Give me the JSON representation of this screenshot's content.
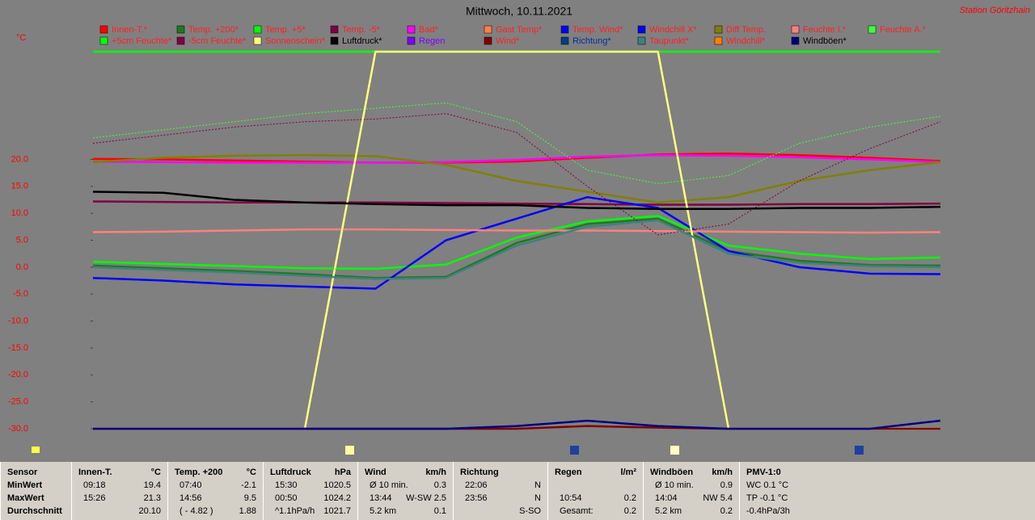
{
  "chart_data": {
    "type": "line",
    "title": "Mittwoch, 10.11.2021",
    "station": "Station Göritzhain",
    "y_unit": "°C",
    "x": [
      0,
      2,
      4,
      6,
      8,
      10,
      12,
      14,
      16,
      18,
      20,
      22,
      24
    ],
    "xlim": [
      0,
      24
    ],
    "ylim": [
      -30,
      40
    ],
    "yticks": [
      {
        "value": 20,
        "label": "20.0"
      },
      {
        "value": 15,
        "label": "15.0"
      },
      {
        "value": 10,
        "label": "10.0"
      },
      {
        "value": 5,
        "label": "5.0"
      },
      {
        "value": 0,
        "label": "0.0"
      },
      {
        "value": -5,
        "label": "-5.0"
      },
      {
        "value": -10,
        "label": "-10.0"
      },
      {
        "value": -15,
        "label": "-15.0"
      },
      {
        "value": -20,
        "label": "-20.0"
      },
      {
        "value": -25,
        "label": "-25.0"
      },
      {
        "value": -30,
        "label": "-30.0"
      }
    ],
    "series": [
      {
        "name": "Innen-T.*",
        "color": "#ff0000",
        "values": [
          20.1,
          20.0,
          19.8,
          19.6,
          19.4,
          19.4,
          19.6,
          20.3,
          20.9,
          21.1,
          20.8,
          20.3,
          19.7
        ]
      },
      {
        "name": "Temp. +200*",
        "color": "#1e7a1e",
        "values": [
          0.3,
          -0.2,
          -0.7,
          -1.3,
          -2.0,
          -1.8,
          4.5,
          8.0,
          9.0,
          3.0,
          1.2,
          0.4,
          0.3
        ]
      },
      {
        "name": "Temp. +5*",
        "color": "#00ff00",
        "values": [
          1.0,
          0.6,
          0.2,
          -0.2,
          -0.3,
          0.5,
          5.5,
          8.5,
          9.5,
          4.0,
          2.5,
          1.5,
          1.8
        ]
      },
      {
        "name": "Temp. -5*",
        "color": "#800040",
        "values": [
          12.2,
          12.1,
          12.0,
          12.0,
          12.0,
          11.9,
          11.8,
          11.7,
          11.6,
          11.6,
          11.7,
          11.7,
          11.8
        ]
      },
      {
        "name": "Bad*",
        "color": "#ff00ff",
        "values": [
          19.6,
          19.5,
          19.4,
          19.4,
          19.4,
          19.5,
          19.9,
          20.5,
          20.8,
          20.7,
          20.4,
          20.0,
          19.5
        ]
      },
      {
        "name": "Gast Temp*",
        "color": "#ff8040",
        "values": [
          null,
          null,
          null,
          null,
          null,
          null,
          null,
          null,
          null,
          null,
          null,
          null,
          null
        ]
      },
      {
        "name": "Temp. Wind*",
        "color": "#0000ff",
        "values": [
          null,
          null,
          null,
          null,
          null,
          null,
          null,
          null,
          null,
          null,
          null,
          null,
          null
        ]
      },
      {
        "name": "Windchill X*",
        "color": "#0000ff",
        "values": [
          -2.0,
          -2.5,
          -3.2,
          -3.6,
          -4.0,
          5.0,
          9.0,
          13.0,
          11.0,
          3.0,
          0.0,
          -1.2,
          -1.3
        ]
      },
      {
        "name": "Diff Temp.",
        "color": "#808000",
        "values": [
          19.5,
          20.3,
          20.7,
          20.8,
          20.6,
          19.0,
          16.0,
          14.0,
          12.0,
          13.0,
          16.0,
          18.0,
          19.5
        ]
      },
      {
        "name": "Feuchte I.*",
        "color": "#ff8080",
        "values": [
          6.5,
          6.6,
          6.8,
          7.0,
          7.0,
          6.9,
          6.8,
          6.8,
          6.7,
          6.6,
          6.5,
          6.4,
          6.5
        ]
      },
      {
        "name": "Feuchte A.*",
        "color": "#40ff40",
        "dashed": true,
        "values": [
          24.0,
          25.5,
          27.0,
          28.5,
          29.5,
          30.5,
          27.0,
          18.0,
          15.5,
          17.0,
          23.0,
          26.0,
          28.0
        ]
      },
      {
        "name": "+5cm Feuchte*",
        "color": "#00ff00",
        "values": [
          40,
          40,
          40,
          40,
          40,
          40,
          40,
          40,
          40,
          40,
          40,
          40,
          40
        ]
      },
      {
        "name": "-5cm Feuchte*",
        "color": "#800040",
        "dashed": true,
        "values": [
          23.0,
          24.5,
          26.0,
          27.0,
          27.5,
          28.5,
          25.0,
          15.0,
          6.0,
          8.0,
          16.0,
          22.0,
          27.0
        ]
      },
      {
        "name": "Sonnenschein*",
        "color": "#ffff80",
        "values": [
          -30,
          -30,
          -30,
          -30,
          40,
          40,
          40,
          40,
          40,
          -30,
          -30,
          -30,
          -30
        ]
      },
      {
        "name": "Luftdruck*",
        "color": "#000000",
        "label_color": "#000000",
        "values": [
          14.0,
          13.8,
          12.5,
          12.0,
          11.7,
          11.5,
          11.5,
          11.0,
          10.8,
          10.8,
          11.0,
          11.0,
          11.2
        ]
      },
      {
        "name": "Regen",
        "color": "#8000ff",
        "label_color": "#8000ff",
        "values": [
          null,
          null,
          null,
          null,
          null,
          null,
          null,
          null,
          null,
          null,
          null,
          null,
          null
        ]
      },
      {
        "name": "Wind*",
        "color": "#800000",
        "values": [
          -30,
          -30,
          -30,
          -30,
          -30,
          -30,
          -30,
          -29.5,
          -29.8,
          -30,
          -30,
          -30,
          -30
        ]
      },
      {
        "name": "Richtung*",
        "color": "#004080",
        "label_color": "#003399",
        "values": [
          null,
          null,
          null,
          null,
          null,
          null,
          null,
          null,
          null,
          null,
          null,
          null,
          null
        ]
      },
      {
        "name": "Taupunkt*",
        "color": "#408080",
        "values": [
          0.0,
          -0.5,
          -1.0,
          -1.6,
          -2.2,
          -2.0,
          4.0,
          7.5,
          8.7,
          2.5,
          0.8,
          0.2,
          0.0
        ]
      },
      {
        "name": "Windchill*",
        "color": "#ff8000",
        "values": [
          null,
          null,
          null,
          null,
          null,
          null,
          null,
          null,
          null,
          null,
          null,
          null,
          null
        ]
      },
      {
        "name": "Windböen*",
        "color": "#000080",
        "label_color": "#000000",
        "values": [
          -30,
          -30,
          -30,
          -30,
          -30,
          -30,
          -29.5,
          -28.5,
          -29.5,
          -30,
          -30,
          -30,
          -28.5
        ]
      }
    ]
  },
  "table": {
    "columns": [
      {
        "header": [
          "Sensor"
        ],
        "rows": [
          [
            "MinWert"
          ],
          [
            "MaxWert"
          ],
          [
            "Durchschnitt"
          ]
        ]
      },
      {
        "header": [
          "Innen-T.",
          "°C"
        ],
        "rows": [
          [
            "09:18",
            "19.4"
          ],
          [
            "15:26",
            "21.3"
          ],
          [
            null,
            "20.10"
          ]
        ]
      },
      {
        "header": [
          "Temp. +200",
          "°C"
        ],
        "rows": [
          [
            "07:40",
            "-2.1"
          ],
          [
            "14:56",
            "9.5"
          ],
          [
            "( - 4.82 )",
            "1.88"
          ]
        ]
      },
      {
        "header": [
          "Luftdruck",
          "hPa"
        ],
        "rows": [
          [
            "15:30",
            "1020.5"
          ],
          [
            "00:50",
            "1024.2"
          ],
          [
            "^1.1hPa/h",
            "1021.7"
          ]
        ]
      },
      {
        "header": [
          "Wind",
          "km/h"
        ],
        "rows": [
          [
            "Ø 10 min.",
            "0.3"
          ],
          [
            "13:44",
            "W-SW 2.5"
          ],
          [
            "5.2 km",
            "0.1"
          ]
        ]
      },
      {
        "header": [
          "Richtung"
        ],
        "rows": [
          [
            "22:06",
            "N"
          ],
          [
            "23:56",
            "N"
          ],
          [
            null,
            "S-SO"
          ]
        ]
      },
      {
        "header": [
          "Regen",
          "l/m²"
        ],
        "rows": [
          [
            null,
            null
          ],
          [
            "10:54",
            "0.2"
          ],
          [
            "Gesamt:",
            "0.2"
          ]
        ]
      },
      {
        "header": [
          "Windböen",
          "km/h"
        ],
        "rows": [
          [
            "Ø 10 min.",
            "0.9"
          ],
          [
            "14:04",
            "NW 5.4"
          ],
          [
            "5.2 km",
            "0.2"
          ]
        ]
      },
      {
        "header": [
          "PMV-1:0"
        ],
        "rows": [
          [
            "WC 0.1 °C"
          ],
          [
            "TP -0.1 °C"
          ],
          [
            "-0.4hPa/3h"
          ]
        ]
      }
    ]
  }
}
